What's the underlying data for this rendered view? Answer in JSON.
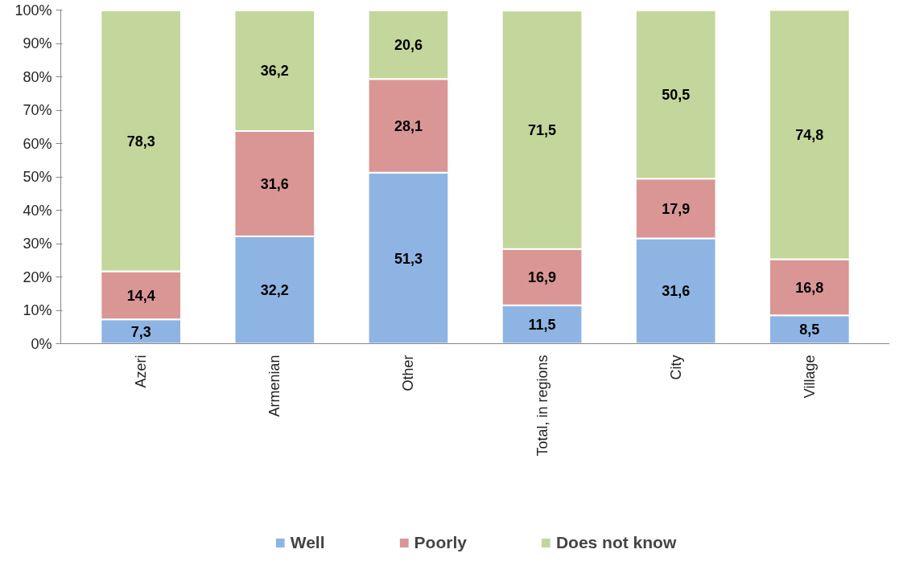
{
  "chart_data": {
    "type": "bar",
    "stacked": true,
    "categories": [
      "Azeri",
      "Armenian",
      "Other",
      "Total, in regions",
      "City",
      "Village"
    ],
    "series": [
      {
        "name": "Well",
        "color": "#8eb4e3",
        "values": [
          7.3,
          32.2,
          51.3,
          11.5,
          31.6,
          8.5
        ],
        "value_labels": [
          "7,3",
          "32,2",
          "51,3",
          "11,5",
          "31,6",
          "8,5"
        ]
      },
      {
        "name": "Poorly",
        "color": "#d99694",
        "values": [
          14.4,
          31.6,
          28.1,
          16.9,
          17.9,
          16.8
        ],
        "value_labels": [
          "14,4",
          "31,6",
          "28,1",
          "16,9",
          "17,9",
          "16,8"
        ]
      },
      {
        "name": "Does not know",
        "color": "#c3d69b",
        "values": [
          78.3,
          36.2,
          20.6,
          71.5,
          50.5,
          74.8
        ],
        "value_labels": [
          "78,3",
          "36,2",
          "20,6",
          "71,5",
          "50,5",
          "74,8"
        ]
      }
    ],
    "ylim": [
      0,
      100.1
    ],
    "yticks": [
      {
        "value": 0,
        "label": "0%"
      },
      {
        "value": 10,
        "label": "10%"
      },
      {
        "value": 20,
        "label": "20%"
      },
      {
        "value": 30,
        "label": "30%"
      },
      {
        "value": 40,
        "label": "40%"
      },
      {
        "value": 50,
        "label": "50%"
      },
      {
        "value": 60,
        "label": "60%"
      },
      {
        "value": 70,
        "label": "70%"
      },
      {
        "value": 80,
        "label": "80%"
      },
      {
        "value": 90,
        "label": "90%"
      },
      {
        "value": 100,
        "label": "100%"
      }
    ],
    "grid": false,
    "legend": "bottom"
  }
}
